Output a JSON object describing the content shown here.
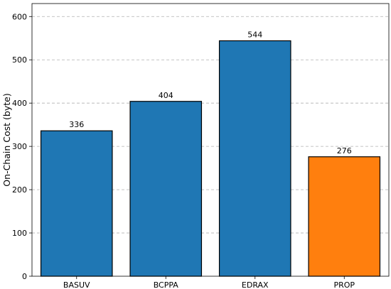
{
  "chart_data": {
    "type": "bar",
    "categories": [
      "BASUV",
      "BCPPA",
      "EDRAX",
      "PROP"
    ],
    "values": [
      336,
      404,
      544,
      276
    ],
    "value_labels": [
      "336",
      "404",
      "544",
      "276"
    ],
    "bar_colors": [
      "#1f77b4",
      "#1f77b4",
      "#1f77b4",
      "#ff7f0e"
    ],
    "title": "",
    "xlabel": "",
    "ylabel": "On-Chain Cost (byte)",
    "ylim": [
      0,
      630
    ],
    "yticks": [
      0,
      100,
      200,
      300,
      400,
      500,
      600
    ],
    "grid": "y-dashed",
    "legend": "none"
  }
}
